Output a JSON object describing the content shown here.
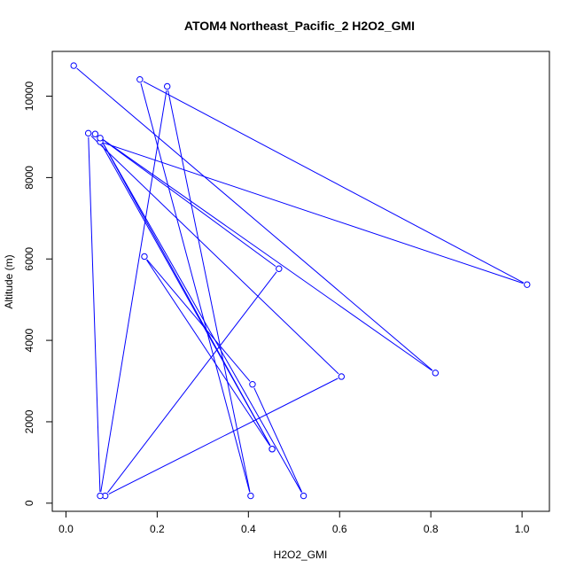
{
  "chart_data": {
    "type": "line",
    "title": "ATOM4 Northeast_Pacific_2 H2O2_GMI",
    "xlabel": "H2O2_GMI",
    "ylabel": "Altitude (m)",
    "xlim": [
      -0.03,
      1.06
    ],
    "ylim": [
      -200,
      11100
    ],
    "xticks": [
      0.0,
      0.2,
      0.4,
      0.6,
      0.8,
      1.0
    ],
    "xtick_labels": [
      "0.0",
      "0.2",
      "0.4",
      "0.6",
      "0.8",
      "1.0"
    ],
    "yticks": [
      0,
      2000,
      4000,
      6000,
      8000,
      10000
    ],
    "ytick_labels": [
      "0",
      "2000",
      "4000",
      "6000",
      "8000",
      "10000"
    ],
    "grid": false,
    "series": [
      {
        "color": "#0000ff",
        "marker": "open-circle",
        "points": [
          {
            "x": 0.017,
            "y": 10750
          },
          {
            "x": 0.81,
            "y": 3200
          },
          {
            "x": 0.064,
            "y": 9070
          },
          {
            "x": 0.467,
            "y": 5760
          },
          {
            "x": 0.086,
            "y": 180
          },
          {
            "x": 0.604,
            "y": 3110
          },
          {
            "x": 0.049,
            "y": 9090
          },
          {
            "x": 0.075,
            "y": 180
          },
          {
            "x": 0.222,
            "y": 10240
          },
          {
            "x": 0.405,
            "y": 180
          },
          {
            "x": 0.162,
            "y": 10410
          },
          {
            "x": 1.011,
            "y": 5370
          },
          {
            "x": 0.075,
            "y": 8880
          },
          {
            "x": 0.452,
            "y": 1330
          },
          {
            "x": 0.075,
            "y": 8970
          },
          {
            "x": 0.521,
            "y": 180
          },
          {
            "x": 0.409,
            "y": 2920
          },
          {
            "x": 0.172,
            "y": 6060
          },
          {
            "x": 0.452,
            "y": 1330
          }
        ]
      }
    ]
  }
}
